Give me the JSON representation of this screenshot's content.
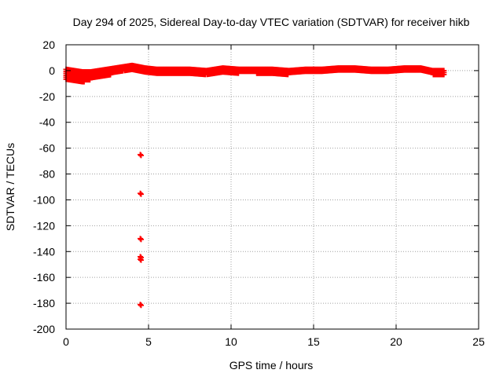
{
  "chart_data": {
    "type": "scatter",
    "title": "Day 294 of 2025, Sidereal Day-to-day VTEC variation (SDTVAR) for receiver hikb",
    "xlabel": "GPS time / hours",
    "ylabel": "SDTVAR / TECUs",
    "xlim": [
      0,
      25
    ],
    "ylim": [
      -200,
      20
    ],
    "xticks": [
      "0",
      "5",
      "10",
      "15",
      "20",
      "25"
    ],
    "yticks": [
      "20",
      "0",
      "-20",
      "-40",
      "-60",
      "-80",
      "-100",
      "-120",
      "-140",
      "-160",
      "-180",
      "-200"
    ],
    "grid": true,
    "marker": "plus",
    "color": "#ff0000",
    "series": [
      {
        "name": "",
        "band": [
          {
            "x": 0.0,
            "min": -8,
            "max": 1
          },
          {
            "x": 0.5,
            "min": -8,
            "max": 0
          },
          {
            "x": 1.0,
            "min": -9,
            "max": -1
          },
          {
            "x": 1.5,
            "min": -7,
            "max": -1
          },
          {
            "x": 2.0,
            "min": -6,
            "max": 0
          },
          {
            "x": 2.5,
            "min": -4,
            "max": 1
          },
          {
            "x": 3.0,
            "min": -2,
            "max": 2
          },
          {
            "x": 3.5,
            "min": 0,
            "max": 3
          },
          {
            "x": 4.0,
            "min": 0,
            "max": 4
          },
          {
            "x": 4.4,
            "min": -1,
            "max": 3
          },
          {
            "x": 4.8,
            "min": -2,
            "max": 2
          },
          {
            "x": 5.5,
            "min": -3,
            "max": 1
          },
          {
            "x": 6.5,
            "min": -3,
            "max": 1
          },
          {
            "x": 7.5,
            "min": -3,
            "max": 1
          },
          {
            "x": 8.5,
            "min": -3,
            "max": 0
          },
          {
            "x": 9.5,
            "min": -2,
            "max": 2
          },
          {
            "x": 10.5,
            "min": -2,
            "max": 1
          },
          {
            "x": 11.5,
            "min": -2,
            "max": 1
          },
          {
            "x": 12.5,
            "min": -3,
            "max": 1
          },
          {
            "x": 13.5,
            "min": -3,
            "max": 0
          },
          {
            "x": 14.5,
            "min": -2,
            "max": 1
          },
          {
            "x": 15.5,
            "min": -2,
            "max": 1
          },
          {
            "x": 16.5,
            "min": -1,
            "max": 2
          },
          {
            "x": 17.5,
            "min": -1,
            "max": 2
          },
          {
            "x": 18.5,
            "min": -1,
            "max": 1
          },
          {
            "x": 19.5,
            "min": -2,
            "max": 1
          },
          {
            "x": 20.5,
            "min": -1,
            "max": 2
          },
          {
            "x": 21.5,
            "min": -1,
            "max": 2
          },
          {
            "x": 22.2,
            "min": -3,
            "max": 0
          },
          {
            "x": 22.9,
            "min": -4,
            "max": 0
          }
        ],
        "outliers": [
          {
            "x": 4.5,
            "y": -65
          },
          {
            "x": 4.5,
            "y": -95
          },
          {
            "x": 4.5,
            "y": -130
          },
          {
            "x": 4.5,
            "y": -144
          },
          {
            "x": 4.5,
            "y": -146
          },
          {
            "x": 4.5,
            "y": -181
          }
        ]
      }
    ]
  }
}
